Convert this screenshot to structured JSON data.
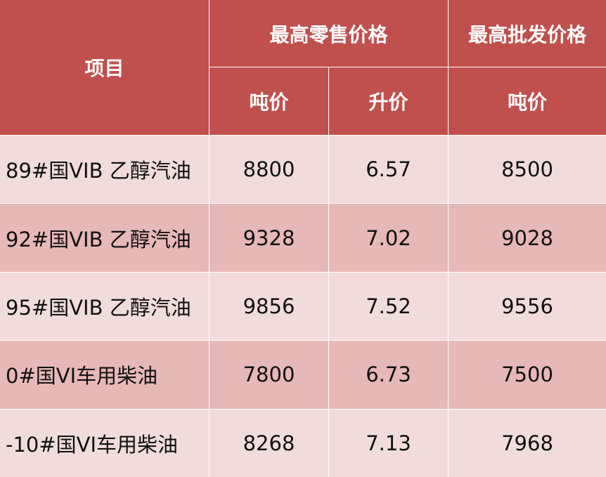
{
  "table": {
    "header": {
      "item": "项目",
      "retail": "最高零售价格",
      "wholesale": "最高批发价格",
      "retail_ton": "吨价",
      "retail_liter": "升价",
      "wholesale_ton": "吨价"
    },
    "rows": [
      [
        "89#国VIB 乙醇汽油",
        8800,
        6.57,
        8500
      ],
      [
        "92#国VIB 乙醇汽油",
        9328,
        7.02,
        9028
      ],
      [
        "95#国VIB 乙醇汽油",
        9856,
        7.52,
        9556
      ],
      [
        "0#国VI车用柴油",
        7800,
        6.73,
        7500
      ],
      [
        "-10#国VI车用柴油",
        8268,
        7.13,
        7968
      ]
    ]
  }
}
